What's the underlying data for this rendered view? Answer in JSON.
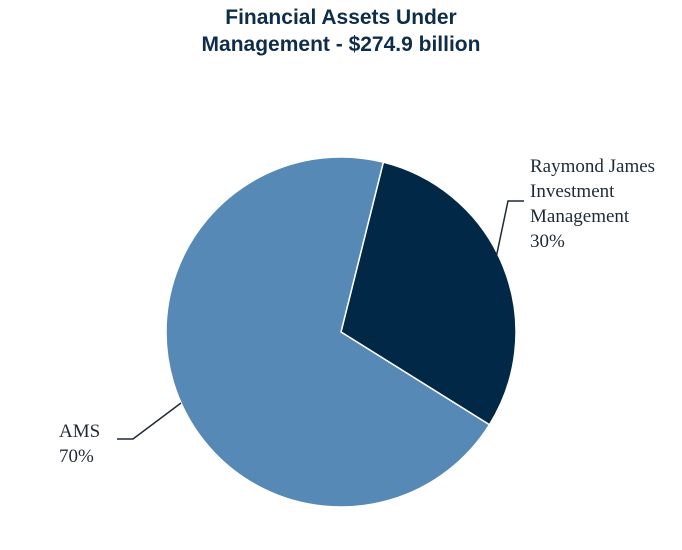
{
  "title_lines": [
    "Financial Assets Under",
    "Management - $274.9 billion"
  ],
  "chart_data": {
    "type": "pie",
    "title": "Financial Assets Under Management - $274.9 billion",
    "slices": [
      {
        "label_lines": [
          "Raymond James",
          "Investment",
          "Management",
          "30%"
        ],
        "value": 30,
        "color": "#022847"
      },
      {
        "label_lines": [
          "AMS",
          "70%"
        ],
        "value": 70,
        "color": "#5689b5"
      }
    ]
  }
}
